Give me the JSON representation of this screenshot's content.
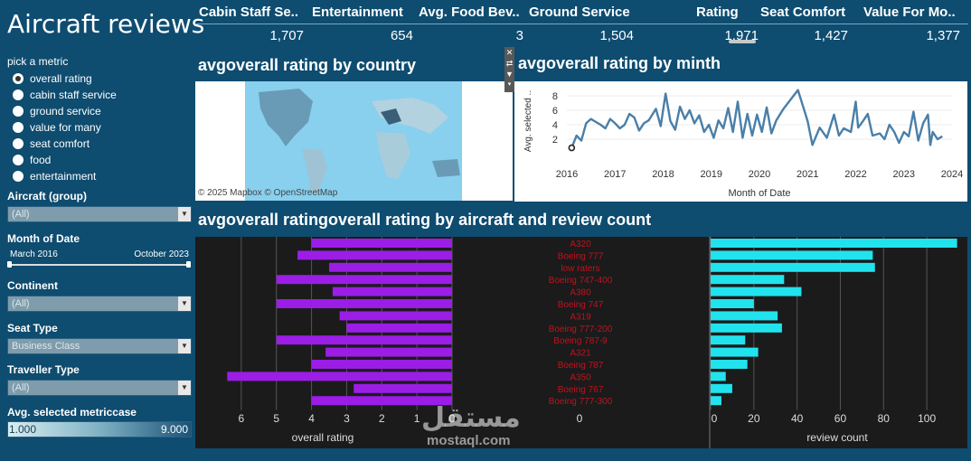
{
  "title": "Aircraft reviews",
  "kpis": [
    {
      "label": "Cabin Staff Se..",
      "value": "1,707"
    },
    {
      "label": "Entertainment",
      "value": "654"
    },
    {
      "label": "Avg. Food Bev..",
      "value": "3"
    },
    {
      "label": "Ground Service",
      "value": "1,504"
    },
    {
      "label": "Rating",
      "value": "1,971"
    },
    {
      "label": "Seat Comfort",
      "value": "1,427"
    },
    {
      "label": "Value For Mo..",
      "value": "1,377"
    }
  ],
  "filters": {
    "pick_metric_label": "pick a metric",
    "metrics": [
      "overall rating",
      "cabin staff service",
      "ground service",
      "value for many",
      "seat comfort",
      "food",
      "entertainment"
    ],
    "selected_metric": "overall rating",
    "aircraft_label": "Aircraft (group)",
    "aircraft_value": "(All)",
    "month_label": "Month of Date",
    "month_start": "March 2016",
    "month_end": "October 2023",
    "continent_label": "Continent",
    "continent_value": "(All)",
    "seat_label": "Seat Type",
    "seat_value": "Business Class",
    "traveller_label": "Traveller Type",
    "traveller_value": "(All)",
    "legend_label": "Avg. selected metriccase",
    "legend_min": "1.000",
    "legend_max": "9.000"
  },
  "map": {
    "title": "avgoverall rating by country",
    "attribution": "© 2025 Mapbox © OpenStreetMap"
  },
  "line_chart_title": "avgoverall rating by minth",
  "bar_section_title": "avgoverall ratingoverall rating by aircraft and review count",
  "watermark": {
    "arabic": "مستقل",
    "latin": "mostaql.com"
  },
  "colors": {
    "line": "#4a7fa8",
    "rating_bar": "#9b1de6",
    "count_bar": "#21e3ee",
    "label": "#c0121e"
  },
  "chart_data": [
    {
      "type": "line",
      "title": "avgoverall rating by minth",
      "xlabel": "Month of Date",
      "ylabel": "Avg. selected ..",
      "x_ticks": [
        "2016",
        "2017",
        "2018",
        "2019",
        "2020",
        "2021",
        "2022",
        "2023",
        "2024"
      ],
      "y_ticks": [
        2,
        4,
        6,
        8
      ],
      "xlim": [
        2016,
        2024
      ],
      "ylim": [
        0,
        9
      ],
      "series": [
        {
          "points": [
            [
              2016.1,
              0.8
            ],
            [
              2016.2,
              2.5
            ],
            [
              2016.3,
              1.8
            ],
            [
              2016.4,
              4.2
            ],
            [
              2016.5,
              4.8
            ],
            [
              2016.7,
              4.0
            ],
            [
              2016.8,
              3.5
            ],
            [
              2016.9,
              4.8
            ],
            [
              2017.0,
              4.2
            ],
            [
              2017.1,
              3.5
            ],
            [
              2017.2,
              4.0
            ],
            [
              2017.3,
              5.5
            ],
            [
              2017.4,
              5.0
            ],
            [
              2017.5,
              3.2
            ],
            [
              2017.6,
              4.2
            ],
            [
              2017.7,
              4.6
            ],
            [
              2017.85,
              6.2
            ],
            [
              2017.95,
              3.8
            ],
            [
              2018.05,
              8.3
            ],
            [
              2018.15,
              4.5
            ],
            [
              2018.25,
              3.3
            ],
            [
              2018.35,
              6.5
            ],
            [
              2018.45,
              4.8
            ],
            [
              2018.55,
              6.0
            ],
            [
              2018.65,
              4.2
            ],
            [
              2018.75,
              5.3
            ],
            [
              2018.85,
              3.0
            ],
            [
              2018.95,
              4.0
            ],
            [
              2019.05,
              2.2
            ],
            [
              2019.15,
              4.6
            ],
            [
              2019.25,
              3.5
            ],
            [
              2019.35,
              6.3
            ],
            [
              2019.45,
              3.0
            ],
            [
              2019.55,
              7.2
            ],
            [
              2019.65,
              2.2
            ],
            [
              2019.75,
              5.5
            ],
            [
              2019.85,
              2.5
            ],
            [
              2019.95,
              5.4
            ],
            [
              2020.05,
              3.0
            ],
            [
              2020.15,
              6.4
            ],
            [
              2020.25,
              2.8
            ],
            [
              2020.35,
              4.6
            ],
            [
              2020.5,
              6.2
            ],
            [
              2020.65,
              7.5
            ],
            [
              2020.8,
              8.8
            ],
            [
              2021.0,
              4.5
            ],
            [
              2021.1,
              1.2
            ],
            [
              2021.25,
              3.6
            ],
            [
              2021.4,
              2.2
            ],
            [
              2021.55,
              5.4
            ],
            [
              2021.65,
              2.5
            ],
            [
              2021.75,
              3.5
            ],
            [
              2021.9,
              3.0
            ],
            [
              2022.0,
              7.2
            ],
            [
              2022.05,
              3.6
            ],
            [
              2022.15,
              4.5
            ],
            [
              2022.25,
              5.5
            ],
            [
              2022.35,
              2.5
            ],
            [
              2022.5,
              2.8
            ],
            [
              2022.6,
              2.0
            ],
            [
              2022.7,
              4.0
            ],
            [
              2022.8,
              3.0
            ],
            [
              2022.9,
              1.5
            ],
            [
              2023.0,
              3.0
            ],
            [
              2023.1,
              2.4
            ],
            [
              2023.2,
              5.8
            ],
            [
              2023.3,
              1.8
            ],
            [
              2023.4,
              4.2
            ],
            [
              2023.5,
              5.4
            ],
            [
              2023.55,
              1.2
            ],
            [
              2023.6,
              3.0
            ],
            [
              2023.7,
              2.0
            ],
            [
              2023.8,
              2.4
            ]
          ]
        }
      ]
    },
    {
      "type": "bar",
      "orientation": "horizontal",
      "categories": [
        "A320",
        "Boeing 777",
        "low raters",
        "Boeing 747-400",
        "A380",
        "Boeing 747",
        "A319",
        "Boeing 777-200",
        "Boeing 787-9",
        "A321",
        "Boeing 787",
        "A350",
        "Boeing 767",
        "Boeing 777-300"
      ],
      "series": [
        {
          "values": [
            4.0,
            4.4,
            3.5,
            5.0,
            3.4,
            5.0,
            3.2,
            3.0,
            5.0,
            3.6,
            4.0,
            6.4,
            2.8,
            4.0
          ]
        },
        {
          "values": [
            114,
            75,
            76,
            34,
            42,
            20,
            31,
            33,
            16,
            22,
            17,
            7,
            10,
            5
          ]
        }
      ],
      "xlabels": [
        "overall rating",
        "review count"
      ],
      "xlim_rating": [
        0,
        7
      ],
      "x_ticks_rating": [
        6,
        5,
        4,
        3,
        2,
        1,
        0
      ],
      "x_ticks_count": [
        0,
        20,
        40,
        60,
        80,
        100
      ],
      "xlim_count": [
        0,
        115
      ]
    }
  ]
}
